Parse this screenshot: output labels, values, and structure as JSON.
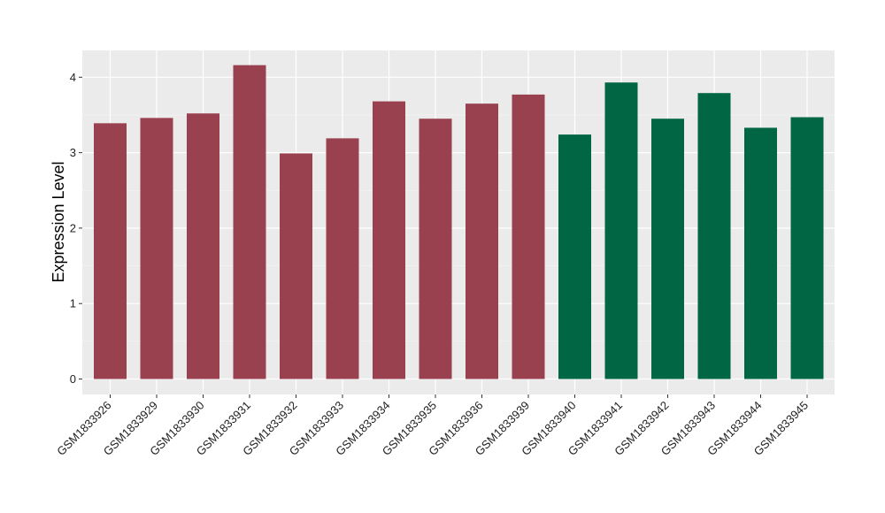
{
  "chart_data": {
    "type": "bar",
    "title": "",
    "xlabel": "",
    "ylabel": "Expression Level",
    "ylim": [
      0,
      4.35
    ],
    "yticks": [
      0,
      1,
      2,
      3,
      4
    ],
    "grid": true,
    "legend": "none",
    "panel_background": "#ebebeb",
    "categories": [
      "GSM1833926",
      "GSM1833929",
      "GSM1833930",
      "GSM1833931",
      "GSM1833932",
      "GSM1833933",
      "GSM1833934",
      "GSM1833935",
      "GSM1833936",
      "GSM1833939",
      "GSM1833940",
      "GSM1833941",
      "GSM1833942",
      "GSM1833943",
      "GSM1833944",
      "GSM1833945"
    ],
    "values": [
      3.39,
      3.46,
      3.52,
      4.16,
      2.99,
      3.19,
      3.68,
      3.45,
      3.65,
      3.77,
      3.24,
      3.93,
      3.45,
      3.79,
      3.33,
      3.47
    ],
    "groups": [
      0,
      0,
      0,
      0,
      0,
      0,
      0,
      0,
      0,
      0,
      1,
      1,
      1,
      1,
      1,
      1
    ],
    "group_colors": [
      "#9a4150",
      "#006643"
    ]
  }
}
